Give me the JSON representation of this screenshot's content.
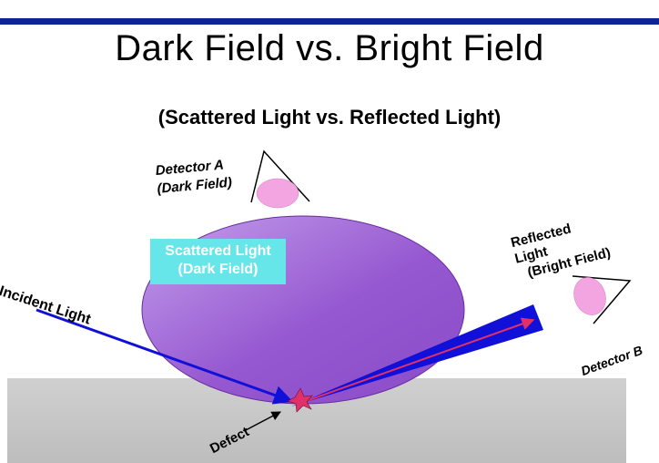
{
  "title": "Dark Field vs. Bright Field",
  "subtitle": "(Scattered Light vs. Reflected Light)",
  "labels": {
    "detector_a": [
      "Detector A",
      "(Dark Field)"
    ],
    "scattered": [
      "Scattered Light",
      "(Dark Field)"
    ],
    "reflected": [
      "Reflected",
      "Light",
      "(Bright Field)"
    ],
    "incident": "Incident Light",
    "detector_b": "Detector B",
    "defect": "Defect"
  },
  "colors": {
    "bar": "#0a2596",
    "scatter_fill": "#9a5fd0",
    "scatter_box": "#66e6e8",
    "beam": "#1010d8",
    "defect": "#e0306a",
    "detector_lens": "#f3a5e2",
    "wafer": "#c8c8c8"
  }
}
